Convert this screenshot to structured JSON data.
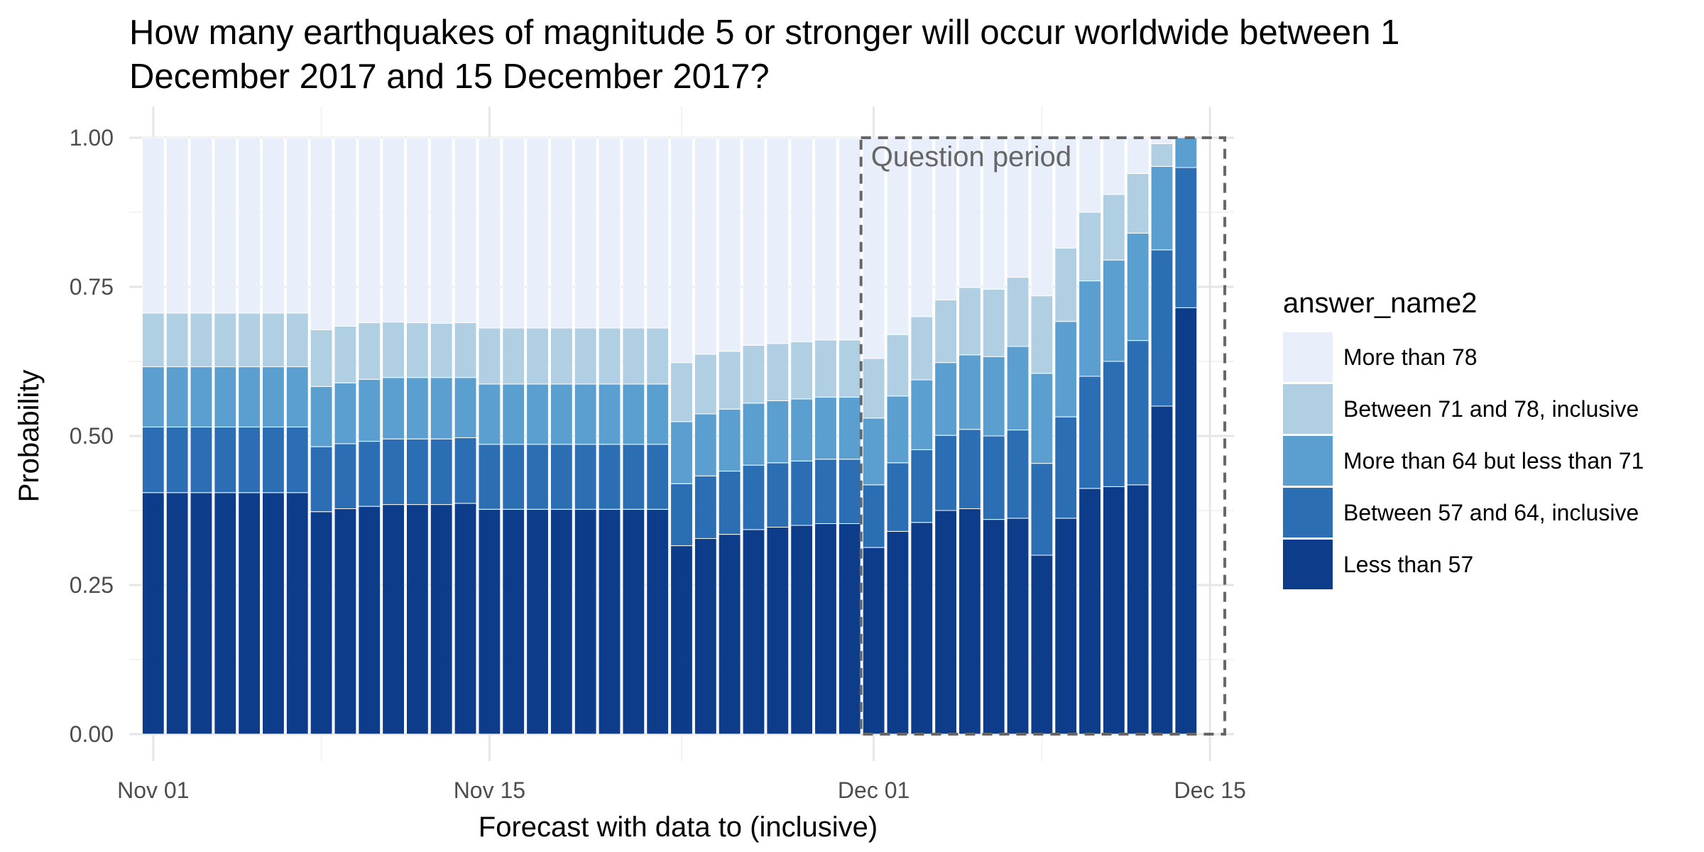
{
  "colors": {
    "background": "#ffffff",
    "grid_major": "#e6e6e6",
    "grid_minor": "#f2f2f2",
    "bar_separator": "#ffffff",
    "annotation": "#666666"
  },
  "chart_data": {
    "type": "bar",
    "stacked": true,
    "title_lines": [
      "How many earthquakes of magnitude 5 or stronger will occur worldwide between 1",
      "December 2017 and 15 December 2017?"
    ],
    "xlabel": "Forecast with data to (inclusive)",
    "ylabel": "Probability",
    "ylim": [
      0,
      1
    ],
    "x_range": [
      "2017-10-31",
      "2017-12-16"
    ],
    "y_ticks": [
      {
        "value": 0,
        "label": "0.00"
      },
      {
        "value": 0.25,
        "label": "0.25"
      },
      {
        "value": 0.5,
        "label": "0.50"
      },
      {
        "value": 0.75,
        "label": "0.75"
      },
      {
        "value": 1,
        "label": "1.00"
      }
    ],
    "x_ticks": [
      {
        "date": "2017-11-01",
        "label": "Nov 01"
      },
      {
        "date": "2017-11-15",
        "label": "Nov 15"
      },
      {
        "date": "2017-12-01",
        "label": "Dec 01"
      },
      {
        "date": "2017-12-15",
        "label": "Dec 15"
      }
    ],
    "x_minor_ticks": [
      "2017-11-08",
      "2017-11-23",
      "2017-12-08"
    ],
    "grid": true,
    "legend": {
      "title": "answer_name2",
      "placement": "right"
    },
    "annotation": {
      "label": "Question period",
      "start": "2017-12-01",
      "end": "2017-12-15"
    },
    "dates": [
      "2017-11-01",
      "2017-11-02",
      "2017-11-03",
      "2017-11-04",
      "2017-11-05",
      "2017-11-06",
      "2017-11-07",
      "2017-11-08",
      "2017-11-09",
      "2017-11-10",
      "2017-11-11",
      "2017-11-12",
      "2017-11-13",
      "2017-11-14",
      "2017-11-15",
      "2017-11-16",
      "2017-11-17",
      "2017-11-18",
      "2017-11-19",
      "2017-11-20",
      "2017-11-21",
      "2017-11-22",
      "2017-11-23",
      "2017-11-24",
      "2017-11-25",
      "2017-11-26",
      "2017-11-27",
      "2017-11-28",
      "2017-11-29",
      "2017-11-30",
      "2017-12-01",
      "2017-12-02",
      "2017-12-03",
      "2017-12-04",
      "2017-12-05",
      "2017-12-06",
      "2017-12-07",
      "2017-12-08",
      "2017-12-09",
      "2017-12-10",
      "2017-12-11",
      "2017-12-12",
      "2017-12-13",
      "2017-12-14"
    ],
    "series": [
      {
        "name": "Less than 57",
        "color": "#0d3d8a",
        "values": [
          0.405,
          0.405,
          0.405,
          0.405,
          0.405,
          0.405,
          0.405,
          0.373,
          0.378,
          0.382,
          0.385,
          0.385,
          0.385,
          0.387,
          0.377,
          0.377,
          0.377,
          0.377,
          0.377,
          0.377,
          0.377,
          0.377,
          0.316,
          0.328,
          0.335,
          0.343,
          0.347,
          0.35,
          0.353,
          0.353,
          0.313,
          0.34,
          0.355,
          0.375,
          0.378,
          0.36,
          0.362,
          0.3,
          0.362,
          0.412,
          0.415,
          0.418,
          0.55,
          0.715
        ]
      },
      {
        "name": "Between 57 and 64, inclusive",
        "color": "#2b6eb4",
        "values": [
          0.11,
          0.11,
          0.11,
          0.11,
          0.11,
          0.11,
          0.11,
          0.109,
          0.109,
          0.109,
          0.11,
          0.11,
          0.11,
          0.11,
          0.109,
          0.109,
          0.109,
          0.109,
          0.109,
          0.109,
          0.109,
          0.109,
          0.104,
          0.105,
          0.106,
          0.108,
          0.108,
          0.108,
          0.108,
          0.108,
          0.105,
          0.115,
          0.122,
          0.126,
          0.133,
          0.14,
          0.148,
          0.154,
          0.17,
          0.188,
          0.21,
          0.242,
          0.262,
          0.235
        ]
      },
      {
        "name": "More than 64 but less than 71",
        "color": "#5a9fd0",
        "values": [
          0.101,
          0.101,
          0.101,
          0.101,
          0.101,
          0.101,
          0.101,
          0.101,
          0.102,
          0.104,
          0.103,
          0.103,
          0.103,
          0.101,
          0.101,
          0.101,
          0.101,
          0.101,
          0.101,
          0.101,
          0.101,
          0.101,
          0.104,
          0.104,
          0.104,
          0.104,
          0.104,
          0.104,
          0.104,
          0.104,
          0.112,
          0.112,
          0.117,
          0.122,
          0.125,
          0.133,
          0.14,
          0.151,
          0.16,
          0.16,
          0.17,
          0.18,
          0.14,
          0.05
        ]
      },
      {
        "name": "Between 71 and 78, inclusive",
        "color": "#b0cfe3",
        "values": [
          0.09,
          0.09,
          0.09,
          0.09,
          0.09,
          0.09,
          0.09,
          0.095,
          0.095,
          0.095,
          0.093,
          0.092,
          0.091,
          0.092,
          0.094,
          0.094,
          0.094,
          0.094,
          0.094,
          0.094,
          0.094,
          0.094,
          0.099,
          0.1,
          0.097,
          0.097,
          0.096,
          0.096,
          0.096,
          0.096,
          0.1,
          0.103,
          0.106,
          0.105,
          0.113,
          0.113,
          0.116,
          0.13,
          0.123,
          0.115,
          0.11,
          0.1,
          0.038,
          0.0
        ]
      },
      {
        "name": "More than 78",
        "color": "#e9effa",
        "values": [
          0.294,
          0.294,
          0.294,
          0.294,
          0.294,
          0.294,
          0.294,
          0.322,
          0.316,
          0.31,
          0.309,
          0.31,
          0.311,
          0.31,
          0.319,
          0.319,
          0.319,
          0.319,
          0.319,
          0.319,
          0.319,
          0.319,
          0.377,
          0.363,
          0.358,
          0.348,
          0.345,
          0.342,
          0.339,
          0.339,
          0.37,
          0.33,
          0.3,
          0.272,
          0.251,
          0.254,
          0.234,
          0.265,
          0.185,
          0.125,
          0.095,
          0.06,
          0.01,
          0.0
        ]
      }
    ]
  }
}
